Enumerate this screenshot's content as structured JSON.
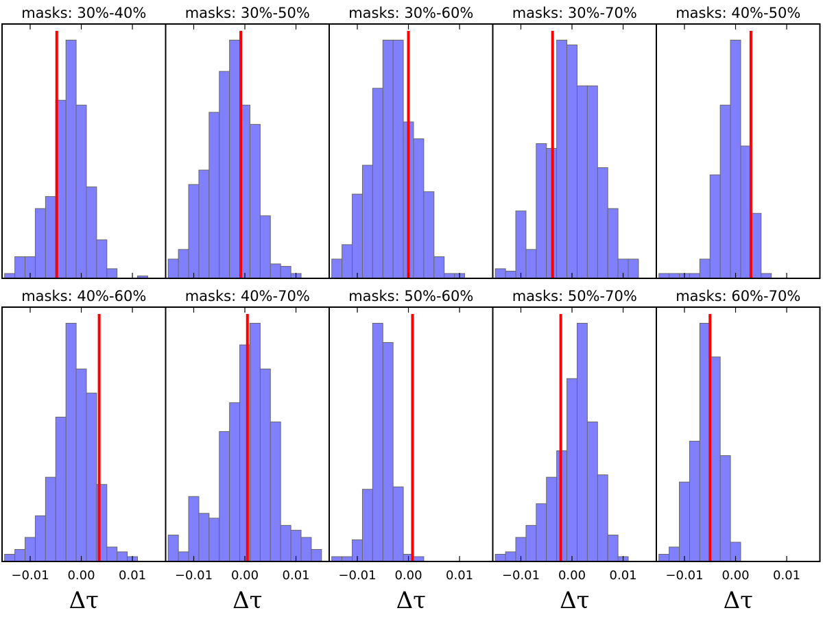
{
  "chart_data": {
    "type": "histogram-grid",
    "rows": 2,
    "cols": 5,
    "xlabel": "Δτ",
    "xlim": [
      -0.0155,
      0.0165
    ],
    "xticks": [
      -0.01,
      0.0,
      0.01
    ],
    "xtick_labels": [
      "−0.01",
      "0.00",
      "0.01"
    ],
    "bin_edges": [
      -0.015,
      -0.013,
      -0.011,
      -0.009,
      -0.007,
      -0.005,
      -0.003,
      -0.001,
      0.001,
      0.003,
      0.005,
      0.007,
      0.009,
      0.011,
      0.013,
      0.015
    ],
    "bar_color": "#8080ff",
    "line_color": "#ff0000",
    "panels": [
      {
        "title": "masks: 30%-40%",
        "ref": -0.0048,
        "ymax": 1.0,
        "counts": [
          0.02,
          0.09,
          0.09,
          0.29,
          0.34,
          0.74,
          0.99,
          0.72,
          0.38,
          0.16,
          0.04,
          0,
          0,
          0.01
        ]
      },
      {
        "title": "masks: 30%-50%",
        "ref": -0.0008,
        "ymax": 1.0,
        "counts": [
          0.08,
          0.12,
          0.39,
          0.45,
          0.69,
          0.86,
          0.99,
          0.72,
          0.64,
          0.26,
          0.06,
          0.05,
          0.02
        ]
      },
      {
        "title": "masks: 30%-60%",
        "ref": 0.0,
        "ymax": 1.0,
        "counts": [
          0.08,
          0.14,
          0.35,
          0.47,
          0.79,
          0.99,
          0.99,
          0.65,
          0.58,
          0.36,
          0.09,
          0.02,
          0.02
        ]
      },
      {
        "title": "masks: 30%-70%",
        "ref": -0.0038,
        "ymax": 1.0,
        "counts": [
          0.04,
          0.03,
          0.28,
          0.12,
          0.56,
          0.54,
          0.99,
          0.97,
          0.8,
          0.8,
          0.46,
          0.29,
          0.08,
          0.08
        ]
      },
      {
        "title": "masks: 40%-50%",
        "ref": 0.003,
        "ymax": 1.0,
        "counts": [
          0.02,
          0.02,
          0.02,
          0.02,
          0.08,
          0.43,
          0.72,
          0.99,
          0.55,
          0.27,
          0.02
        ]
      },
      {
        "title": "masks: 40%-60%",
        "ref": 0.0035,
        "ymax": 1.0,
        "counts": [
          0.03,
          0.05,
          0.1,
          0.19,
          0.35,
          0.6,
          0.99,
          0.8,
          0.7,
          0.32,
          0.06,
          0.04,
          0.02
        ]
      },
      {
        "title": "masks: 40%-70%",
        "ref": 0.0005,
        "ymax": 1.0,
        "counts": [
          0.11,
          0.04,
          0.27,
          0.2,
          0.18,
          0.54,
          0.66,
          0.9,
          0.99,
          0.8,
          0.58,
          0.15,
          0.13,
          0.1,
          0.05
        ]
      },
      {
        "title": "masks: 50%-60%",
        "ref": 0.0008,
        "ymax": 1.0,
        "counts": [
          0.02,
          0.02,
          0.09,
          0.3,
          0.99,
          0.91,
          0.31,
          0.03,
          0.02
        ]
      },
      {
        "title": "masks: 50%-70%",
        "ref": -0.0022,
        "ymax": 1.0,
        "counts": [
          0.03,
          0.04,
          0.1,
          0.15,
          0.24,
          0.35,
          0.46,
          0.76,
          0.99,
          0.58,
          0.36,
          0.11,
          0.02
        ]
      },
      {
        "title": "masks: 60%-70%",
        "ref": -0.005,
        "ymax": 1.0,
        "counts": [
          0.03,
          0.06,
          0.33,
          0.5,
          0.99,
          0.85,
          0.44,
          0.08
        ]
      }
    ]
  }
}
